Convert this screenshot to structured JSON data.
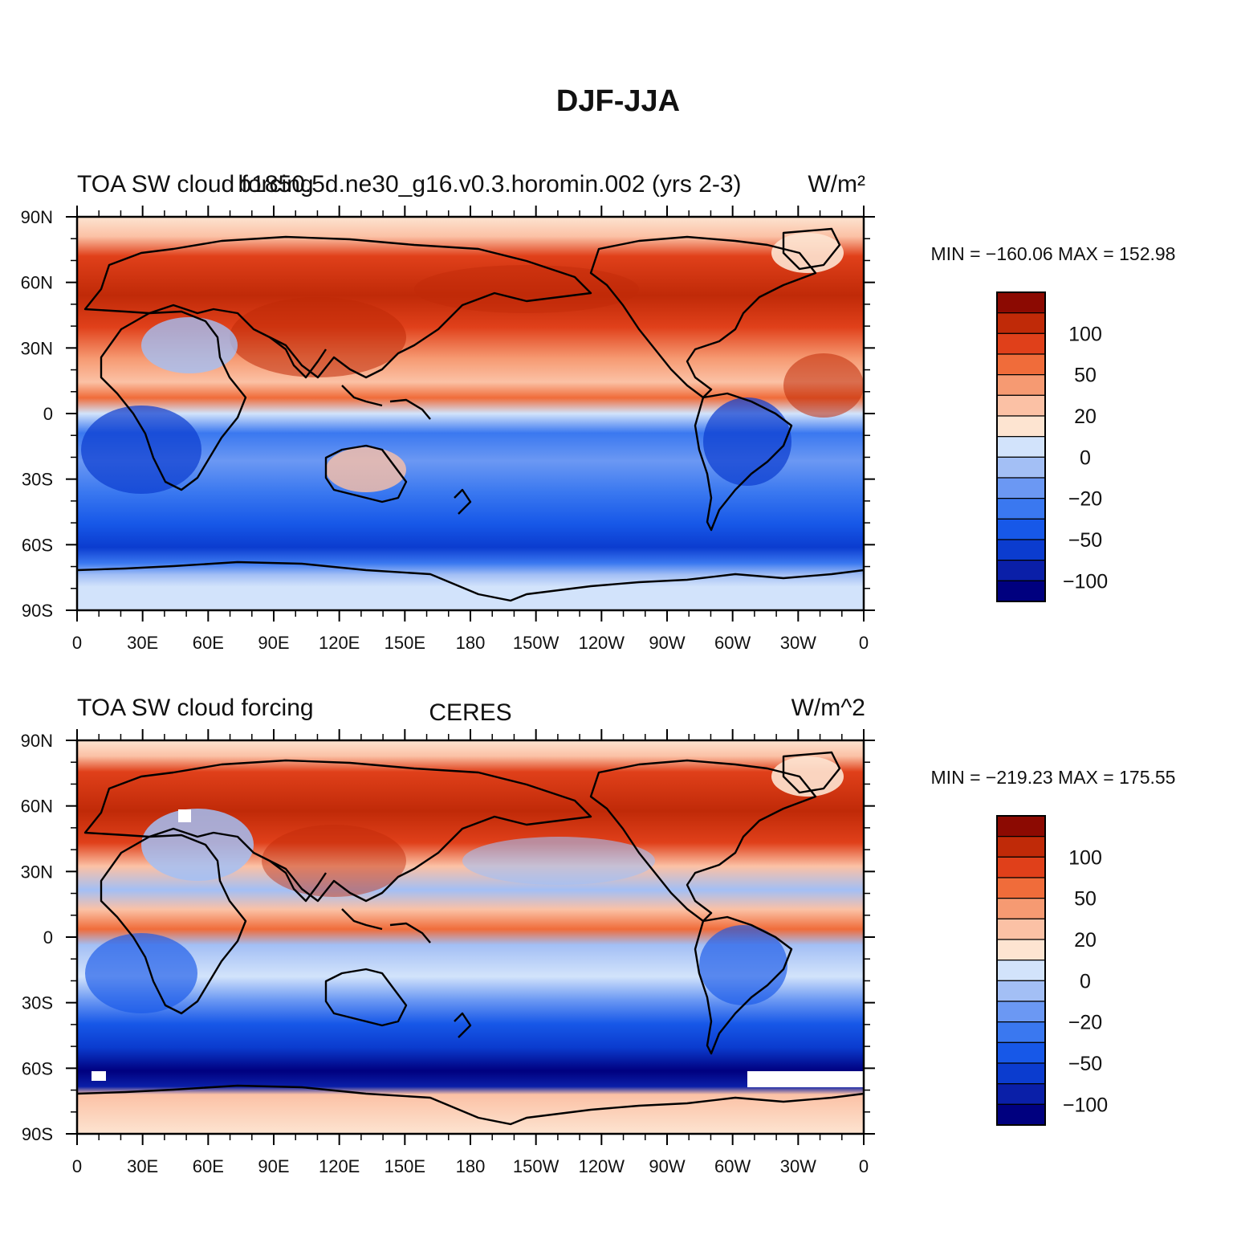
{
  "figure": {
    "title": "DJF-JJA"
  },
  "colors": {
    "levels": [
      "#00007f",
      "#0a1fa8",
      "#0b3ccf",
      "#1758e8",
      "#3a78f0",
      "#6b98f3",
      "#a3bff5",
      "#d2e3fb",
      "#fde4d1",
      "#fbc1a5",
      "#f69a72",
      "#f06c3a",
      "#e0401a",
      "#c02a08",
      "#8c0a02"
    ]
  },
  "chart_data": [
    {
      "type": "heatmap",
      "panel": "top",
      "title_left": "TOA SW cloud forcing",
      "title_center": "b1850.5d.ne30_g16.v0.3.horomin.002 (yrs 2-3)",
      "title_right": "W/m²",
      "stats": "MIN = −160.06 MAX = 152.98",
      "xlabel": "",
      "ylabel": "",
      "x_ticks": [
        "0",
        "30E",
        "60E",
        "90E",
        "120E",
        "150E",
        "180",
        "150W",
        "120W",
        "90W",
        "60W",
        "30W",
        "0"
      ],
      "y_ticks": [
        "90N",
        "60N",
        "30N",
        "0",
        "30S",
        "60S",
        "90S"
      ],
      "colorbar_levels": [
        -100,
        -50,
        -20,
        0,
        20,
        50,
        100
      ],
      "colorbar_labels": [
        "100",
        "50",
        "20",
        "0",
        "−20",
        "−50",
        "−100"
      ]
    },
    {
      "type": "heatmap",
      "panel": "bottom",
      "title_left": "TOA SW cloud forcing",
      "title_center": "CERES",
      "title_right": "W/m^2",
      "stats": "MIN = −219.23 MAX = 175.55",
      "xlabel": "",
      "ylabel": "",
      "x_ticks": [
        "0",
        "30E",
        "60E",
        "90E",
        "120E",
        "150E",
        "180",
        "150W",
        "120W",
        "90W",
        "60W",
        "30W",
        "0"
      ],
      "y_ticks": [
        "90N",
        "60N",
        "30N",
        "0",
        "30S",
        "60S",
        "90S"
      ],
      "colorbar_levels": [
        -100,
        -50,
        -20,
        0,
        20,
        50,
        100
      ],
      "colorbar_labels": [
        "100",
        "50",
        "20",
        "0",
        "−20",
        "−50",
        "−100"
      ]
    }
  ]
}
